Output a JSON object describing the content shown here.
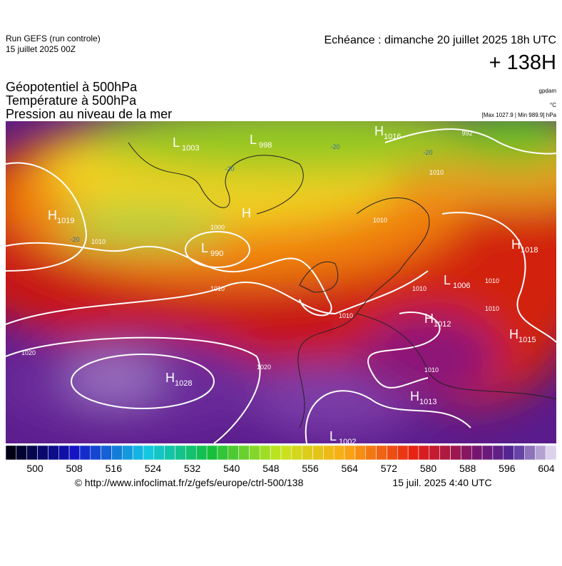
{
  "header": {
    "run": "Run GEFS (run controle)",
    "run_date": "15 juillet 2025 00Z",
    "echeance": "Echéance : dimanche 20 juillet 2025 18h UTC",
    "lead": "+ 138H"
  },
  "titles": [
    "Géopotentiel à 500hPa",
    "Température à 500hPa",
    "Pression au niveau de la mer"
  ],
  "units": {
    "geopotential": "gpdam",
    "temperature": "°C",
    "pressure": "[Max 1027.9 | Min 989.9] hPa"
  },
  "centers": [
    {
      "kind": "L",
      "value": 1003
    },
    {
      "kind": "L",
      "value": 998
    },
    {
      "kind": "H",
      "value": 1016
    },
    {
      "kind": "H",
      "value": 1019
    },
    {
      "kind": "H"
    },
    {
      "kind": "L",
      "value": 990
    },
    {
      "kind": "H",
      "value": 1018
    },
    {
      "kind": "L",
      "value": 1006
    },
    {
      "kind": "H",
      "value": 1012
    },
    {
      "kind": "H",
      "value": 1015
    },
    {
      "kind": "H",
      "value": 1028
    },
    {
      "kind": "H",
      "value": 1013
    },
    {
      "kind": "L",
      "value": 1002
    }
  ],
  "isobar_labels": [
    992,
    1010,
    1010,
    1000,
    1010,
    1010,
    1010,
    1010,
    1020,
    1020,
    1010,
    1010,
    1010
  ],
  "temperature_labels": [
    -20,
    -20,
    -20,
    -20
  ],
  "colorbar_ticks": [
    500,
    508,
    516,
    524,
    532,
    540,
    548,
    556,
    564,
    572,
    580,
    588,
    596,
    604
  ],
  "footer": {
    "url": "© http://www.infoclimat.fr/z/gefs/europe/ctrl-500/138",
    "issued": "15 juil. 2025  4:40 UTC"
  }
}
